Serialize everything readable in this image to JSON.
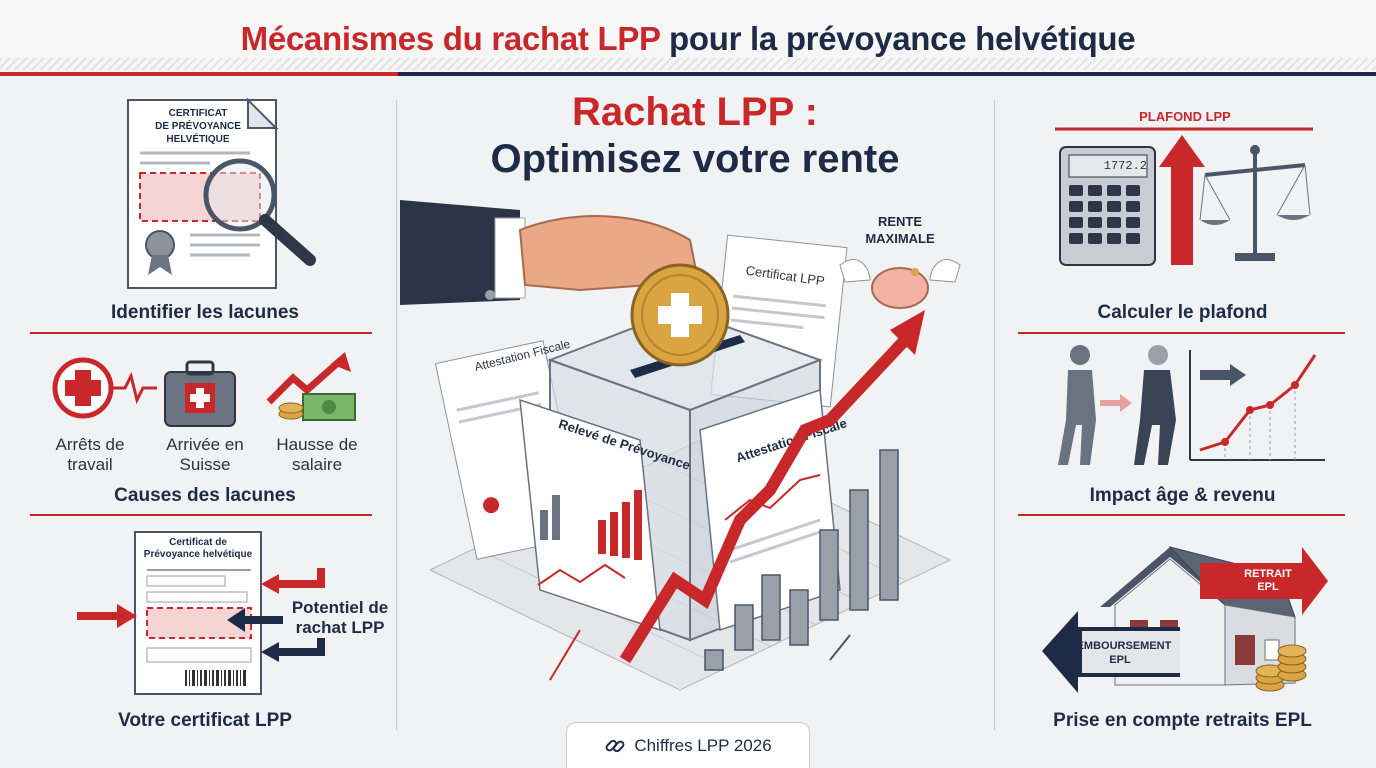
{
  "header": {
    "title_red": "Mécanismes du rachat LPP",
    "title_navy": "pour la prévoyance helvétique"
  },
  "center": {
    "title_line1": "Rachat LPP :",
    "title_line2": "Optimisez votre rente",
    "rente_label_1": "RENTE",
    "rente_label_2": "MAXIMALE",
    "doc_certificat": "Certificat LPP",
    "doc_attestation_left": "Attestation Fiscale",
    "doc_releve": "Relevé de Prévoyance",
    "doc_attestation_right": "Attestation Fiscale"
  },
  "left": {
    "cert_title_1": "CERTIFICAT",
    "cert_title_2": "DE PRÉVOYANCE",
    "cert_title_3": "HELVÉTIQUE",
    "identifier_label": "Identifier les lacunes",
    "cause_1": "Arrêts de travail",
    "cause_1_line1": "Arrêts de",
    "cause_1_line2": "travail",
    "cause_2_line1": "Arrivée en",
    "cause_2_line2": "Suisse",
    "cause_3_line1": "Hausse de",
    "cause_3_line2": "salaire",
    "causes_label": "Causes des lacunes",
    "cert2_title_1": "Certificat de",
    "cert2_title_2": "Prévoyance helvétique",
    "potentiel_line1": "Potentiel de",
    "potentiel_line2": "rachat LPP",
    "certificat_label": "Votre certificat LPP"
  },
  "right": {
    "plafond_top": "PLAFOND LPP",
    "calculator_display": "1772.2",
    "calculer_label": "Calculer le plafond",
    "impact_label": "Impact âge & revenu",
    "retrait_line1": "RETRAIT",
    "retrait_line2": "EPL",
    "remboursement_line1": "REMBOURSEMENT",
    "remboursement_line2": "EPL",
    "epl_label": "Prise en compte retraits EPL"
  },
  "footer": {
    "badge": "Chiffres LPP 2026"
  },
  "colors": {
    "red": "#c8282a",
    "navy": "#1d2b46",
    "gold": "#d9a441"
  }
}
